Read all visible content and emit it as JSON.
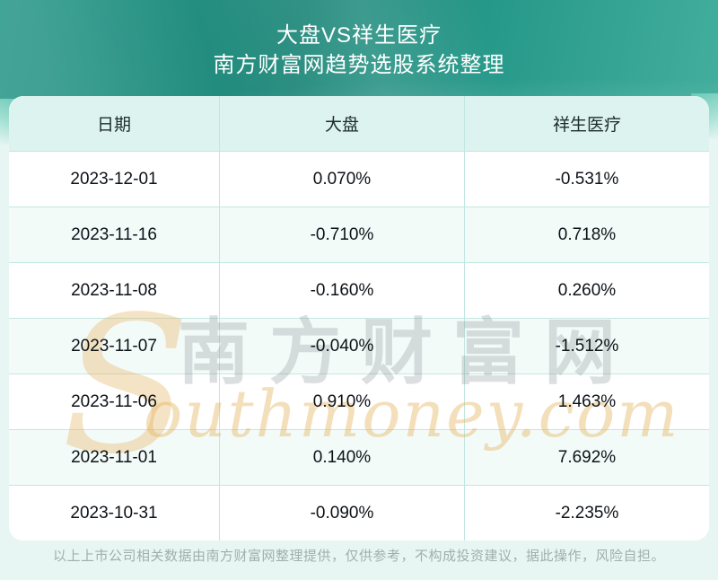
{
  "header": {
    "title": "大盘VS祥生医疗",
    "subtitle": "南方财富网趋势选股系统整理"
  },
  "chart_data": {
    "type": "table",
    "title": "大盘VS祥生医疗",
    "subtitle": "南方财富网趋势选股系统整理",
    "columns": [
      "日期",
      "大盘",
      "祥生医疗"
    ],
    "rows": [
      [
        "2023-12-01",
        "0.070%",
        "-0.531%"
      ],
      [
        "2023-11-16",
        "-0.710%",
        "0.718%"
      ],
      [
        "2023-11-08",
        "-0.160%",
        "0.260%"
      ],
      [
        "2023-11-07",
        "-0.040%",
        "-1.512%"
      ],
      [
        "2023-11-06",
        "0.910%",
        "1.463%"
      ],
      [
        "2023-11-01",
        "0.140%",
        "7.692%"
      ],
      [
        "2023-10-31",
        "-0.090%",
        "-2.235%"
      ]
    ]
  },
  "watermark": {
    "latin_initial": "S",
    "cjk": "南方财富网",
    "latin_rest": "outhmoney.com"
  },
  "footer": {
    "disclaimer": "以上上市公司相关数据由南方财富网整理提供，仅供参考，不构成投资建议，据此操作，风险自担。"
  },
  "colors": {
    "hero_teal_dark": "#1e8779",
    "hero_teal_light": "#43ae9d",
    "page_background": "#e7f6f3",
    "table_header_background": "#ddf3ef",
    "row_alt_background": "#f3fbf9",
    "grid_line": "#c2e7e2",
    "header_text": "#1d2c2a",
    "body_text": "#0d1217",
    "footer_text": "#a0aead",
    "watermark_gray": "#768582",
    "watermark_gold": "#e4b25c",
    "title_text": "#ffffff"
  }
}
